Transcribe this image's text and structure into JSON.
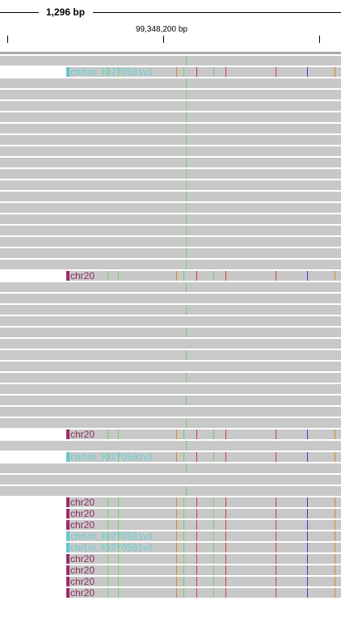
{
  "ruler": {
    "span_label": "1,296 bp",
    "position_label": "99,348,200 bp"
  },
  "colors": {
    "read_fill": "#c8c8c8",
    "chr20_bar": "#9b2d6b",
    "chrUn_bar": "#5fc9cf",
    "chr20_text": "#8a2f5e",
    "chrUn_text": "#62d1d6",
    "mismatch_A": "#6cd36c",
    "mismatch_T": "#d23b3b",
    "mismatch_C": "#3a3ad6",
    "mismatch_G": "#d48a2a"
  },
  "labels": {
    "chr20": "chr20",
    "chrUn": "chrUn_KI270591v1"
  },
  "read_rows": [
    {
      "kind": "full"
    },
    {
      "kind": "chrUn"
    },
    {
      "kind": "full"
    },
    {
      "kind": "full"
    },
    {
      "kind": "full"
    },
    {
      "kind": "full"
    },
    {
      "kind": "full"
    },
    {
      "kind": "full"
    },
    {
      "kind": "full"
    },
    {
      "kind": "full"
    },
    {
      "kind": "full"
    },
    {
      "kind": "full"
    },
    {
      "kind": "full"
    },
    {
      "kind": "full"
    },
    {
      "kind": "full"
    },
    {
      "kind": "full"
    },
    {
      "kind": "full"
    },
    {
      "kind": "full"
    },
    {
      "kind": "full"
    },
    {
      "kind": "chr20"
    },
    {
      "kind": "full"
    },
    {
      "kind": "full"
    },
    {
      "kind": "full"
    },
    {
      "kind": "full"
    },
    {
      "kind": "full"
    },
    {
      "kind": "full"
    },
    {
      "kind": "full"
    },
    {
      "kind": "full"
    },
    {
      "kind": "full"
    },
    {
      "kind": "full"
    },
    {
      "kind": "full"
    },
    {
      "kind": "full"
    },
    {
      "kind": "full"
    },
    {
      "kind": "chr20"
    },
    {
      "kind": "full"
    },
    {
      "kind": "chrUn"
    },
    {
      "kind": "full"
    },
    {
      "kind": "full"
    },
    {
      "kind": "full"
    },
    {
      "kind": "chr20"
    },
    {
      "kind": "chr20"
    },
    {
      "kind": "chr20"
    },
    {
      "kind": "chrUn"
    },
    {
      "kind": "chrUn"
    },
    {
      "kind": "chr20"
    },
    {
      "kind": "chr20"
    },
    {
      "kind": "chr20"
    },
    {
      "kind": "chr20"
    }
  ]
}
